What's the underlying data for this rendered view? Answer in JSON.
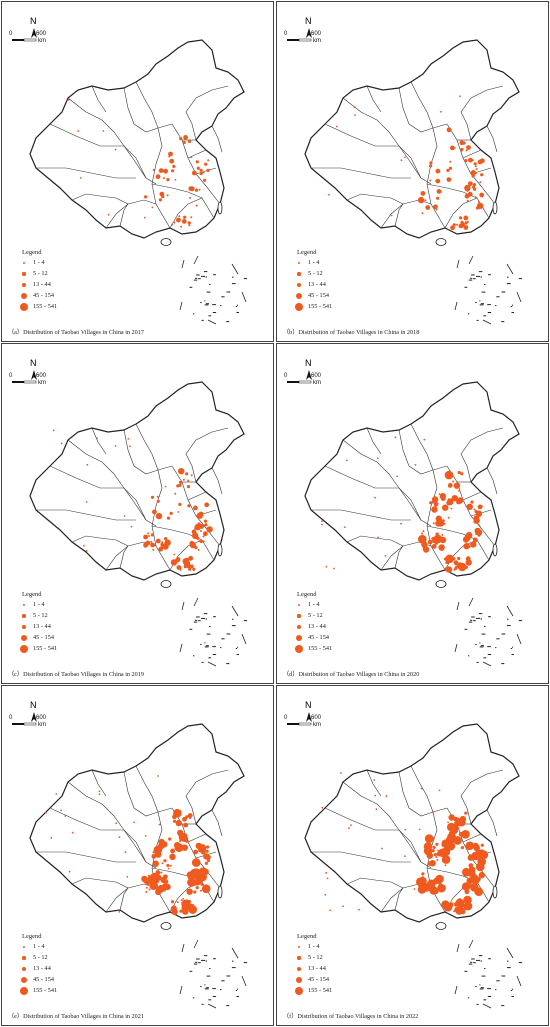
{
  "accent_color": "#f05a1e",
  "panels": [
    {
      "caption": "（a）Distribution of Taobao Villages in China in 2017",
      "year": 2017,
      "density": 1
    },
    {
      "caption": "（b）Distribution of Taobao Villages in China in 2018",
      "year": 2018,
      "density": 2
    },
    {
      "caption": "（c）Distribution of Taobao Villages in China in 2019",
      "year": 2019,
      "density": 3
    },
    {
      "caption": "（d）Distribution of Taobao Villages in China in 2020",
      "year": 2020,
      "density": 4
    },
    {
      "caption": "（e）Distribution of Taobao Villages in China in 2021",
      "year": 2021,
      "density": 5
    },
    {
      "caption": "（f）Distribution of Taobao Villages in China in 2022",
      "year": 2022,
      "density": 6
    }
  ],
  "north_label": "N",
  "scale": {
    "zero": "0",
    "max": "600",
    "unit": "km"
  },
  "legend": {
    "title": "Legend",
    "classes": [
      "1 - 4",
      "5 - 12",
      "13 - 44",
      "45 - 154",
      "155 - 541"
    ]
  }
}
